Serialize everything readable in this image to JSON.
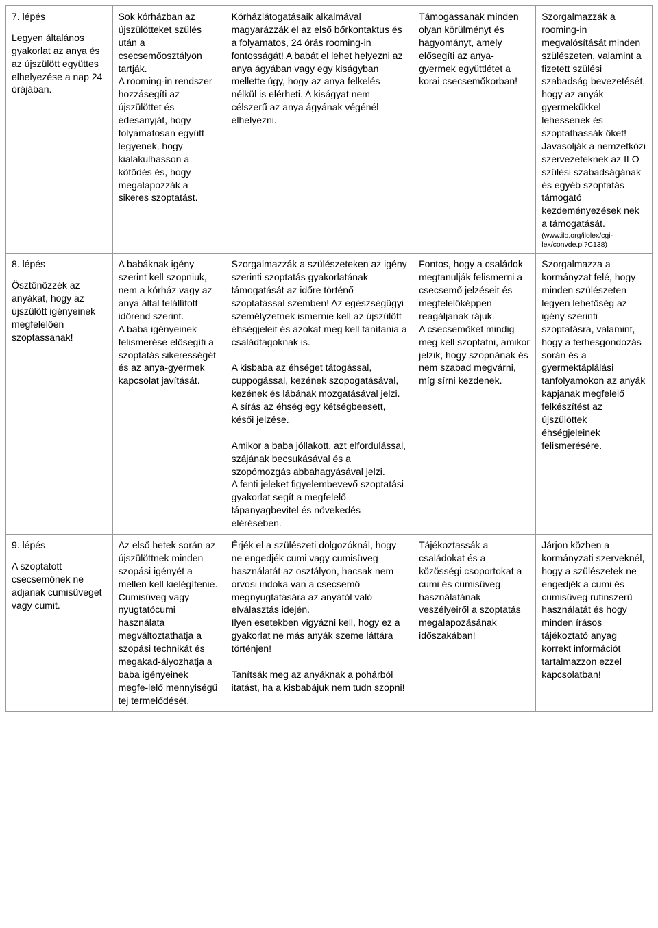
{
  "rows": [
    {
      "step_title": "7. lépés",
      "step_text": "Legyen általános gyakorlat az anya és az újszülött együttes elhelyezése a nap 24 órájában.",
      "c2": "Sok kórházban az újszülötteket szülés után a csecsemőosztályon tartják.\nA rooming-in rendszer hozzásegíti az újszülöttet és édesanyját, hogy folyamatosan együtt legyenek, hogy kialakulhasson a kötődés és, hogy megalapozzák a sikeres szoptatást.",
      "c3": "Kórházlátogatásaik alkalmával magyarázzák el az első bőrkontaktus és a folyamatos, 24 órás rooming-in fontosságát! A babát el lehet helyezni az anya ágyában vagy egy kiságyban mellette úgy, hogy az anya felkelés nélkül is elérheti. A kiságyat nem célszerű az anya ágyának végénél elhelyezni.",
      "c4": "Támogassanak minden olyan körülményt és hagyományt, amely elősegíti az anya-gyermek együttlétet a korai csecsemőkorban!",
      "c5_main": "Szorgalmazzák a rooming-in megvalósítását minden szülészeten, valamint a fizetett szülési szabadság bevezetését, hogy az anyák gyermekükkel lehessenek és szoptathassák őket!\nJavasolják a nemzetközi szervezeteknek az ILO szülési szabadságának és egyéb szoptatás támogató kezdeményezések nek a támogatását.",
      "c5_note": "(www.ilo.org/ilolex/cgi-lex/convde.pl?C138)"
    },
    {
      "step_title": "8. lépés",
      "step_text": "Ösztönözzék az anyákat, hogy az újszülött igényeinek megfelelően szoptassanak!",
      "c2": "A babáknak igény szerint kell szopniuk, nem a kórház vagy az anya által felállított időrend szerint.\nA baba igényeinek felismerése elősegíti a szoptatás sikerességét és az anya-gyermek kapcsolat javítását.",
      "c3": "Szorgalmazzák a szülészeteken az igény szerinti szoptatás gyakorlatának támogatását az időre történő szoptatással szemben! Az egészségügyi személyzetnek ismernie kell az újszülött éhségjeleit és azokat meg kell tanítania a családtagoknak is.\n\nA kisbaba az éhséget tátogással, cuppogással, kezének szopogatásával, kezének és lábának mozgatásával jelzi. A sírás az éhség egy kétségbeesett, késői jelzése.\n\nAmikor a baba jóllakott, azt elfordulással, szájának becsukásával és a szopómozgás abbahagyásával jelzi.\nA fenti jeleket figyelembevevő szoptatási gyakorlat segít a megfelelő tápanyagbevitel és növekedés elérésében.",
      "c4": "Fontos, hogy a családok megtanulják felismerni a csecsemő jelzéseit és megfelelőképpen reagáljanak rájuk.\nA csecsemőket mindig meg kell szoptatni, amikor jelzik, hogy szopnának és nem szabad megvárni, míg sírni kezdenek.",
      "c5_main": "Szorgalmazza a kormányzat felé, hogy minden szülészeten legyen lehetőség az igény szerinti szoptatásra, valamint, hogy a terhesgondozás során és a gyermektáplálási tanfolyamokon az anyák kapjanak megfelelő felkészítést az újszülöttek éhségjeleinek felismerésére.",
      "c5_note": ""
    },
    {
      "step_title": "9. lépés",
      "step_text": "A szoptatott csecsemőnek ne adjanak cumisüveget vagy cumit.",
      "c2": "Az első hetek során az újszülöttnek minden szopási igényét a mellen kell kielégítenie.\nCumisüveg vagy nyugtatócumi használata megváltoztathatja a szopási technikát és megakad-ályozhatja a baba igényeinek megfe-lelő mennyiségű tej termelődését.",
      "c3": "Érjék el a szülészeti dolgozóknál, hogy ne engedjék cumi vagy cumisüveg használatát az osztályon, hacsak nem orvosi indoka van a csecsemő megnyugtatására az anyától való elválasztás idején.\nIlyen esetekben vigyázni kell, hogy ez a gyakorlat ne más anyák szeme láttára történjen!\n\nTanítsák meg az anyáknak a pohárból itatást, ha a kisbabájuk nem tudn szopni!",
      "c4": "Tájékoztassák a családokat és a közösségi csoportokat a cumi és cumisüveg használatának veszélyeiről a szoptatás megalapozásának időszakában!",
      "c5_main": "Járjon közben a kormányzati szerveknél, hogy a szülészetek ne engedjék a cumi és cumisüveg rutinszerű használatát és hogy minden írásos tájékoztató anyag korrekt információt tartalmazzon ezzel kapcsolatban!",
      "c5_note": ""
    }
  ]
}
